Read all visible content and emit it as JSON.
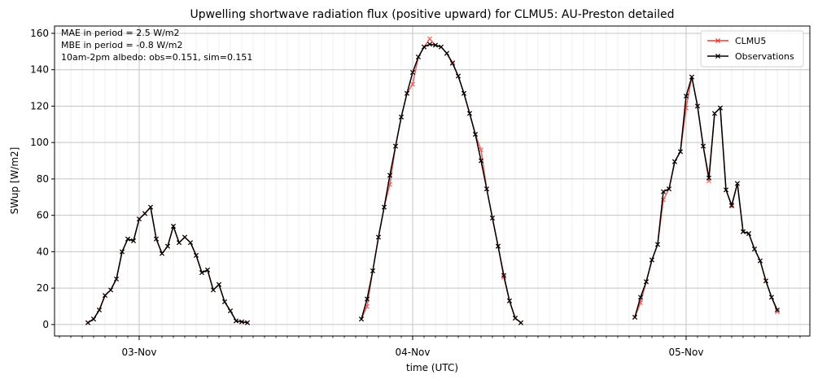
{
  "chart_data": {
    "type": "line",
    "title": "Upwelling shortwave radiation flux (positive upward) for CLMU5: AU-Preston detailed",
    "x_label": "time (UTC)",
    "y_label": "SWup [W/m2]",
    "annotations": [
      "MAE in period = 2.5 W/m2",
      "MBE in period = -0.8 W/m2",
      "10am-2pm albedo: obs=0.151, sim=0.151"
    ],
    "x": [
      -4.5,
      -4,
      -3.5,
      -3,
      -2.5,
      -2,
      -1.5,
      -1,
      -0.5,
      0,
      0.5,
      1,
      1.5,
      2,
      2.5,
      3,
      3.5,
      4,
      4.5,
      5,
      5.5,
      6,
      6.5,
      7,
      7.5,
      8,
      8.5,
      9,
      9.5,
      10,
      19.5,
      20,
      20.5,
      21,
      21.5,
      22,
      22.5,
      23,
      23.5,
      24,
      24.5,
      25,
      25.5,
      26,
      26.5,
      27,
      27.5,
      28,
      28.5,
      29,
      29.5,
      30,
      30.5,
      31,
      31.5,
      32,
      32.5,
      33,
      33.5,
      34,
      43.5,
      44,
      44.5,
      45,
      45.5,
      46,
      46.5,
      47,
      47.5,
      48,
      48.5,
      49,
      49.5,
      50,
      50.5,
      51,
      51.5,
      52,
      52.5,
      53,
      53.5,
      54,
      54.5,
      55,
      55.5,
      56
    ],
    "series": [
      {
        "name": "CLMU5",
        "color": "#ee3a35",
        "values": [
          1,
          3,
          8,
          16,
          19,
          25,
          40,
          47,
          46,
          58,
          61,
          64.5,
          47,
          39,
          43,
          54,
          45,
          48,
          45,
          38,
          28.5,
          30,
          19,
          22,
          12.5,
          7.5,
          2,
          1.5,
          1,
          null,
          3,
          10,
          29.5,
          48,
          64.5,
          77,
          98,
          114,
          127,
          132,
          147,
          152.5,
          157,
          153.5,
          152.5,
          149,
          144,
          136.5,
          127,
          116,
          104.5,
          96,
          74.5,
          58.5,
          43,
          26,
          13,
          3.5,
          1,
          null,
          4,
          12,
          23.5,
          35.5,
          44,
          68.5,
          74.5,
          89.5,
          95,
          119,
          136,
          120,
          98,
          79,
          116,
          119,
          74,
          65,
          77.5,
          51,
          50,
          41.5,
          35,
          24,
          15,
          7
        ]
      },
      {
        "name": "Observations",
        "color": "#000000",
        "values": [
          1,
          3,
          8,
          16,
          19,
          25,
          40,
          47,
          46,
          58,
          61,
          64.5,
          47,
          39,
          43,
          54,
          45,
          48,
          45,
          38,
          28.5,
          30,
          19,
          22,
          12.5,
          7.5,
          2,
          1.5,
          1,
          null,
          3,
          14,
          29.5,
          48,
          64.5,
          82,
          98,
          114,
          127,
          138.5,
          147,
          152.5,
          154,
          153.5,
          152.5,
          149,
          143.5,
          136.5,
          127,
          116,
          104.5,
          90,
          74.5,
          58.5,
          43,
          27,
          13,
          3.5,
          1,
          null,
          4,
          15,
          23.5,
          35.5,
          44,
          73,
          74.5,
          89.5,
          95,
          125.5,
          136,
          120,
          98,
          80.5,
          116,
          119,
          74,
          65.5,
          77.5,
          51,
          50,
          41.5,
          35,
          24,
          15,
          8
        ]
      }
    ],
    "xlim": [
      -7.43,
      58.86
    ],
    "xticks": [
      {
        "value": 0,
        "label": "03-Nov"
      },
      {
        "value": 24,
        "label": "04-Nov"
      },
      {
        "value": 48,
        "label": "05-Nov"
      }
    ],
    "ylim": [
      -6.3,
      164
    ],
    "yticks": [
      0,
      20,
      40,
      60,
      80,
      100,
      120,
      140,
      160
    ],
    "grid": true,
    "legend": "upper right"
  }
}
